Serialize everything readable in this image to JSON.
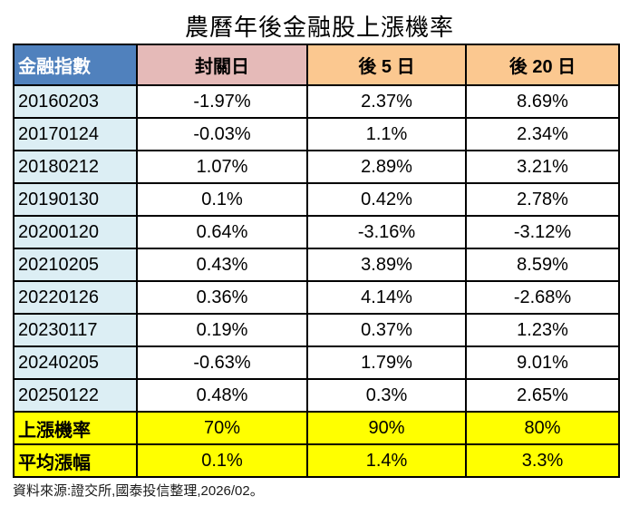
{
  "title": "農曆年後金融股上漲機率",
  "footer": "資料來源:證交所,國泰投信整理,2026/02。",
  "colors": {
    "header_blue": "#5081BD",
    "header_pink": "#E5BAB8",
    "header_orange": "#FBC890",
    "column_lightblue": "#DCEEF4",
    "highlight_yellow": "#FFFF00",
    "border_black": "#000000",
    "header_text_white": "#FFFFFF"
  },
  "table": {
    "headers": [
      "金融指數",
      "封關日",
      "後 5 日",
      "後 20 日"
    ],
    "rows": [
      [
        "20160203",
        "-1.97%",
        "2.37%",
        "8.69%"
      ],
      [
        "20170124",
        "-0.03%",
        "1.1%",
        "2.34%"
      ],
      [
        "20180212",
        "1.07%",
        "2.89%",
        "3.21%"
      ],
      [
        "20190130",
        "0.1%",
        "0.42%",
        "2.78%"
      ],
      [
        "20200120",
        "0.64%",
        "-3.16%",
        "-3.12%"
      ],
      [
        "20210205",
        "0.43%",
        "3.89%",
        "8.59%"
      ],
      [
        "20220126",
        "0.36%",
        "4.14%",
        "-2.68%"
      ],
      [
        "20230117",
        "0.19%",
        "0.37%",
        "1.23%"
      ],
      [
        "20240205",
        "-0.63%",
        "1.79%",
        "9.01%"
      ],
      [
        "20250122",
        "0.48%",
        "0.3%",
        "2.65%"
      ]
    ],
    "summary_rows": [
      {
        "label": "上漲機率",
        "values": [
          "70%",
          "90%",
          "80%"
        ]
      },
      {
        "label": "平均漲幅",
        "values": [
          "0.1%",
          "1.4%",
          "3.3%"
        ]
      }
    ]
  },
  "chart_data": {
    "type": "table",
    "title": "農曆年後金融股上漲機率",
    "columns": [
      "金融指數",
      "封關日",
      "後 5 日",
      "後 20 日"
    ],
    "rows": [
      [
        "20160203",
        "-1.97%",
        "2.37%",
        "8.69%"
      ],
      [
        "20170124",
        "-0.03%",
        "1.1%",
        "2.34%"
      ],
      [
        "20180212",
        "1.07%",
        "2.89%",
        "3.21%"
      ],
      [
        "20190130",
        "0.1%",
        "0.42%",
        "2.78%"
      ],
      [
        "20200120",
        "0.64%",
        "-3.16%",
        "-3.12%"
      ],
      [
        "20210205",
        "0.43%",
        "3.89%",
        "8.59%"
      ],
      [
        "20220126",
        "0.36%",
        "4.14%",
        "-2.68%"
      ],
      [
        "20230117",
        "0.19%",
        "0.37%",
        "1.23%"
      ],
      [
        "20240205",
        "-0.63%",
        "1.79%",
        "9.01%"
      ],
      [
        "20250122",
        "0.48%",
        "0.3%",
        "2.65%"
      ]
    ],
    "summary": [
      {
        "label": "上漲機率",
        "values": [
          "70%",
          "90%",
          "80%"
        ]
      },
      {
        "label": "平均漲幅",
        "values": [
          "0.1%",
          "1.4%",
          "3.3%"
        ]
      }
    ],
    "source_note": "資料來源:證交所,國泰投信整理,2026/02。"
  }
}
